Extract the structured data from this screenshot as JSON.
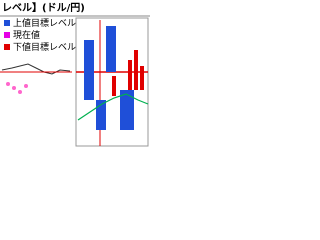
{
  "header": {
    "title": "レベル】(ドル/円)"
  },
  "legend": {
    "items": [
      {
        "label": "上値目標レベル"
      },
      {
        "label": "現在値"
      },
      {
        "label": "下値目標レベル"
      }
    ]
  }
}
